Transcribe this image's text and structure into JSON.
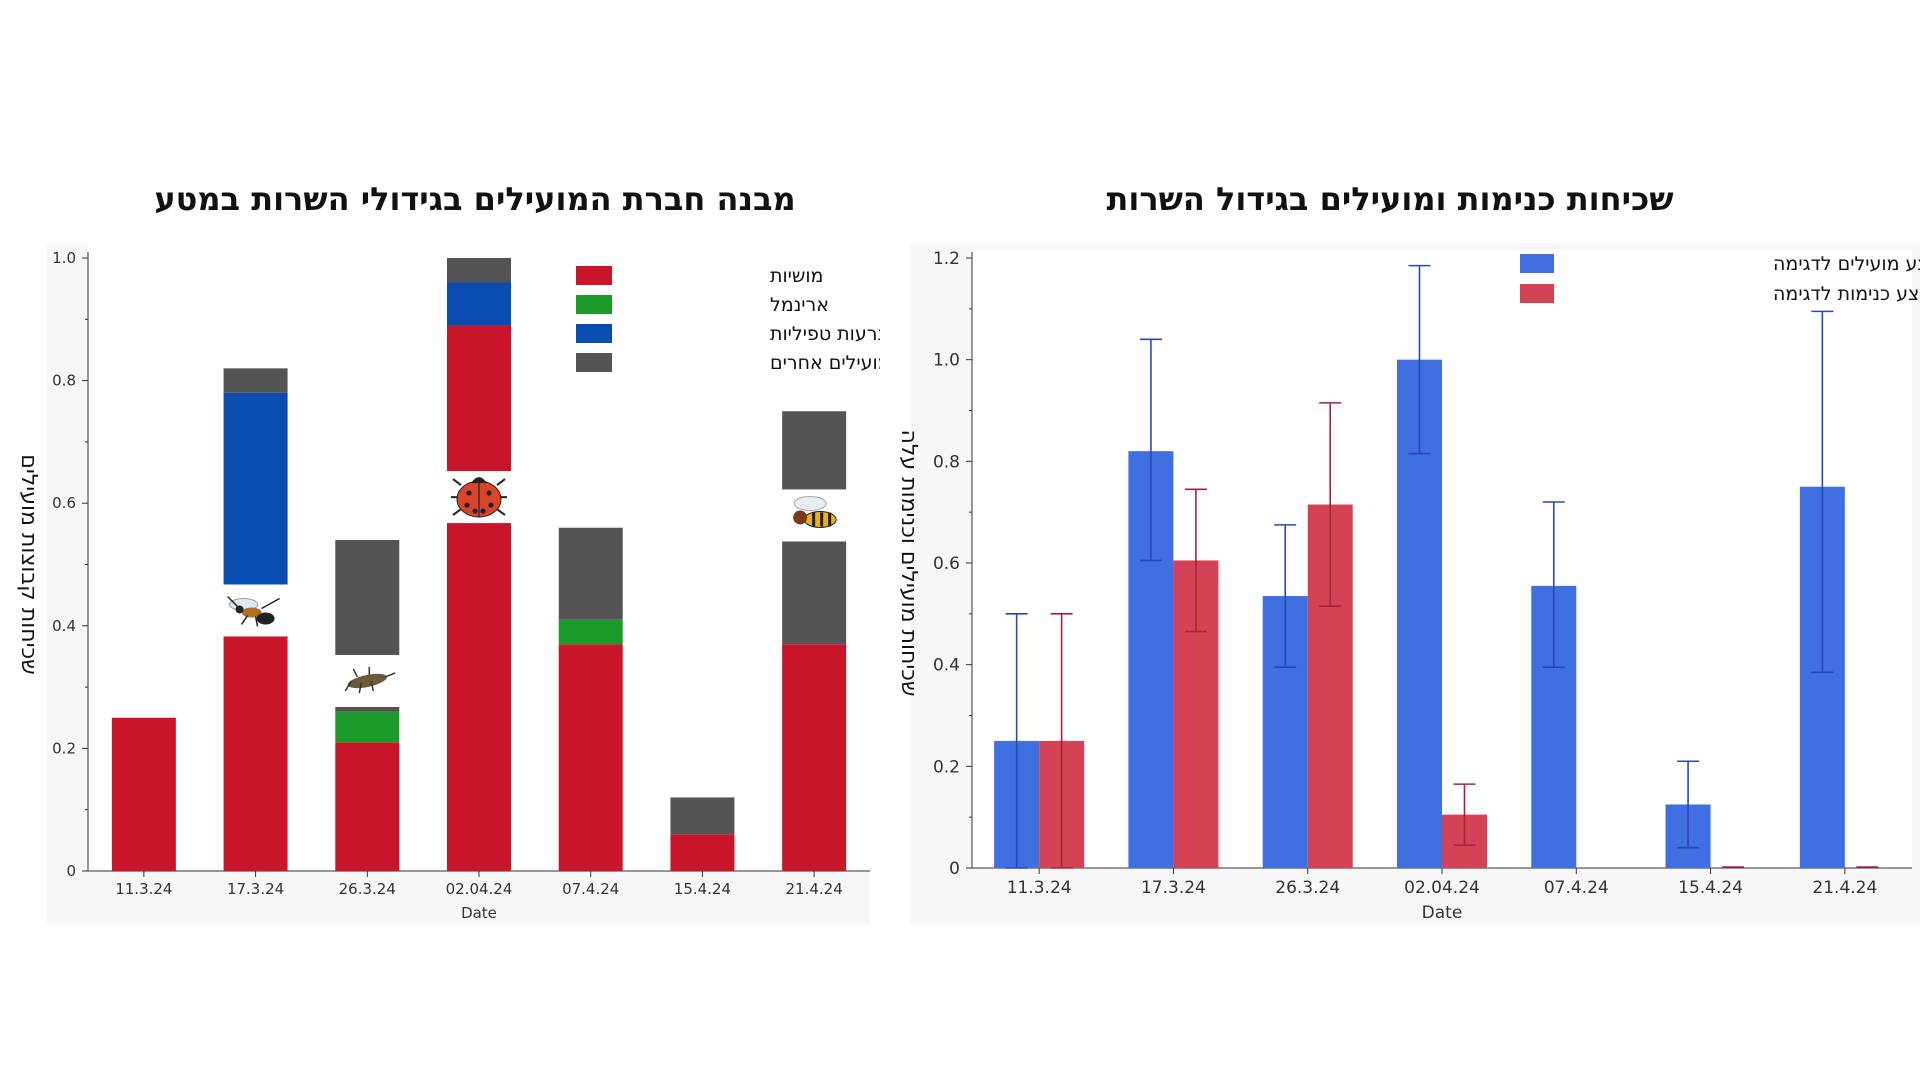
{
  "colors": {
    "red_stack": "#C8152A",
    "green_stack": "#1B9A2A",
    "blue_stack": "#0A4DB0",
    "grey_stack": "#545454",
    "blue_bar": "#3F6FE0",
    "red_bar": "#D34355",
    "blue_err": "#2749B8",
    "red_err": "#A8233A"
  },
  "chart_data": [
    {
      "type": "bar",
      "stacked": true,
      "title": "מבנה חברת המועילים בגידולי השרות במטע",
      "xlabel": "Date",
      "ylabel": "שכיחות קבוצות מועילים",
      "ylim": [
        0,
        1.0
      ],
      "yticks": [
        "0",
        "0.2",
        "0.4",
        "0.6",
        "0.8",
        "1.0"
      ],
      "categories": [
        "11.3.24",
        "17.3.24",
        "26.3.24",
        "02.04.24",
        "07.4.24",
        "15.4.24",
        "21.4.24"
      ],
      "legend_position": "top-right",
      "series": [
        {
          "name": "מושיות",
          "color_key": "red_stack",
          "values": [
            0.25,
            0.39,
            0.21,
            0.89,
            0.37,
            0.06,
            0.37
          ]
        },
        {
          "name": "ארינמל",
          "color_key": "green_stack",
          "values": [
            0,
            0,
            0.05,
            0,
            0.04,
            0,
            0
          ]
        },
        {
          "name": "צרעות טפיליות",
          "color_key": "blue_stack",
          "values": [
            0,
            0.39,
            0,
            0.07,
            0,
            0,
            0
          ]
        },
        {
          "name": "מועילים אחרים",
          "color_key": "grey_stack",
          "values": [
            0,
            0.04,
            0.28,
            0.04,
            0.15,
            0.06,
            0.38
          ]
        }
      ],
      "annotations": [
        {
          "category": "17.3.24",
          "icon": "parasitic-wasp-icon"
        },
        {
          "category": "26.3.24",
          "icon": "lacewing-larva-icon"
        },
        {
          "category": "02.04.24",
          "icon": "ladybug-icon"
        },
        {
          "category": "21.4.24",
          "icon": "hoverfly-icon"
        }
      ]
    },
    {
      "type": "bar",
      "title": "שכיחות כנימות ומועילים בגידול השרות",
      "xlabel": "Date",
      "ylabel": "שכיחות  מועילים וכנימות עלה",
      "ylim": [
        0,
        1.2
      ],
      "yticks": [
        "0",
        "0.2",
        "0.4",
        "0.6",
        "0.8",
        "1.0",
        "1.2"
      ],
      "categories": [
        "11.3.24",
        "17.3.24",
        "26.3.24",
        "02.04.24",
        "07.4.24",
        "15.4.24",
        "21.4.24"
      ],
      "legend_position": "top-right",
      "series": [
        {
          "name": "ממוצע מועילים לדגימה",
          "color_key": "blue_bar",
          "err_color_key": "blue_err",
          "values": [
            0.25,
            0.82,
            0.535,
            1.0,
            0.555,
            0.125,
            0.75
          ],
          "err_low": [
            0.0,
            0.605,
            0.395,
            0.815,
            0.395,
            0.04,
            0.385
          ],
          "err_high": [
            0.5,
            1.04,
            0.675,
            1.185,
            0.72,
            0.21,
            1.095
          ]
        },
        {
          "name": "ממוצע כנימות לדגימה",
          "color_key": "red_bar",
          "err_color_key": "red_err",
          "values": [
            0.25,
            0.605,
            0.715,
            0.105,
            0.0,
            0.0,
            0.0
          ],
          "values_note_indices": [],
          "err_low": [
            0.0,
            0.465,
            0.515,
            0.045,
            0.0,
            0.0,
            0.0
          ],
          "err_high": [
            0.5,
            0.745,
            0.915,
            0.165,
            0.0,
            0.0,
            0.0
          ]
        }
      ]
    }
  ]
}
